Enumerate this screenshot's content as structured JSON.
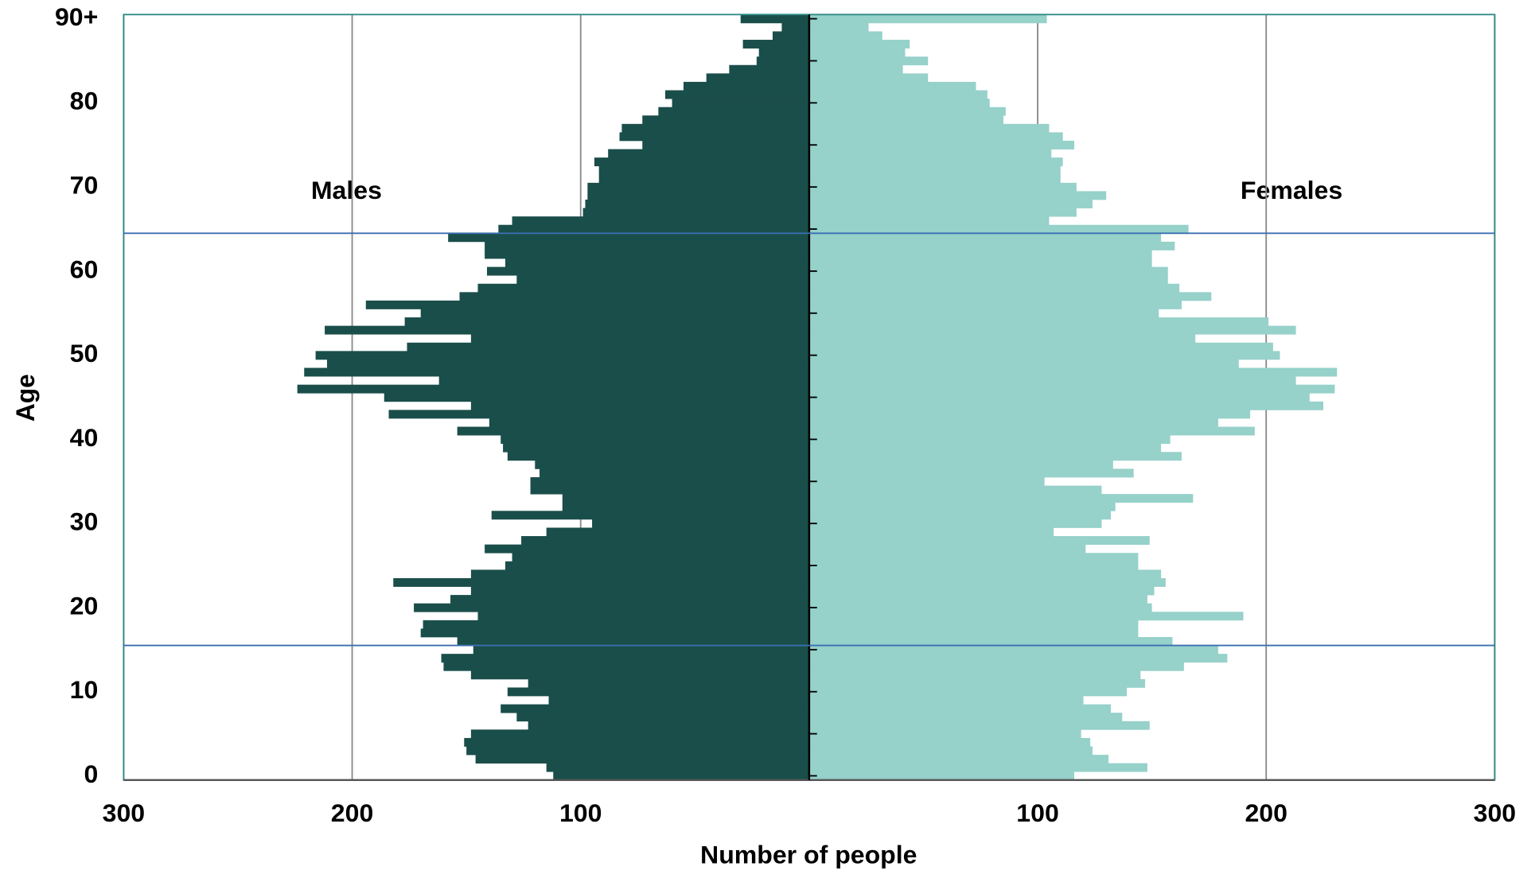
{
  "chart_data": {
    "type": "pyramid",
    "xlabel": "Number of people",
    "ylabel": "Age",
    "categories": [
      "0",
      null,
      null,
      null,
      null,
      null,
      null,
      null,
      null,
      null,
      "10",
      null,
      null,
      null,
      null,
      null,
      null,
      null,
      null,
      null,
      "20",
      null,
      null,
      null,
      null,
      null,
      null,
      null,
      null,
      null,
      "30",
      null,
      null,
      null,
      null,
      null,
      null,
      null,
      null,
      null,
      "40",
      null,
      null,
      null,
      null,
      null,
      null,
      null,
      null,
      null,
      "50",
      null,
      null,
      null,
      null,
      null,
      null,
      null,
      null,
      null,
      "60",
      null,
      null,
      null,
      null,
      null,
      null,
      null,
      null,
      null,
      "70",
      null,
      null,
      null,
      null,
      null,
      null,
      null,
      null,
      null,
      "80",
      null,
      null,
      null,
      null,
      null,
      null,
      null,
      null,
      null,
      "90+"
    ],
    "series": [
      {
        "name": "Males",
        "side": "left",
        "color": "#1a4e4a",
        "values": [
          112,
          115,
          146,
          150,
          151,
          148,
          123,
          128,
          135,
          114,
          132,
          123,
          148,
          160,
          161,
          147,
          154,
          170,
          169,
          145,
          173,
          157,
          148,
          182,
          148,
          133,
          130,
          142,
          126,
          115,
          95,
          139,
          108,
          108,
          122,
          122,
          118,
          120,
          132,
          134,
          135,
          154,
          140,
          184,
          148,
          186,
          224,
          162,
          221,
          211,
          216,
          176,
          148,
          212,
          177,
          170,
          194,
          153,
          145,
          128,
          141,
          133,
          142,
          142,
          158,
          136,
          130,
          99,
          98,
          97,
          97,
          92,
          92,
          94,
          88,
          73,
          83,
          82,
          73,
          66,
          60,
          63,
          55,
          45,
          35,
          23,
          22,
          29,
          16,
          12,
          30
        ]
      },
      {
        "name": "Females",
        "side": "right",
        "color": "#96d1ca",
        "values": [
          116,
          148,
          131,
          124,
          123,
          119,
          149,
          137,
          132,
          120,
          139,
          147,
          145,
          164,
          183,
          179,
          159,
          144,
          144,
          190,
          150,
          148,
          151,
          156,
          154,
          144,
          144,
          121,
          149,
          107,
          128,
          132,
          134,
          168,
          128,
          103,
          142,
          133,
          163,
          154,
          158,
          195,
          179,
          193,
          225,
          219,
          230,
          213,
          231,
          188,
          206,
          203,
          169,
          213,
          201,
          153,
          163,
          176,
          162,
          157,
          157,
          150,
          150,
          160,
          154,
          166,
          105,
          117,
          124,
          130,
          117,
          110,
          110,
          111,
          106,
          116,
          111,
          105,
          85,
          86,
          79,
          78,
          73,
          52,
          41,
          52,
          42,
          44,
          32,
          26,
          104
        ]
      }
    ],
    "xlim": [
      0,
      300
    ],
    "xticks": [
      100,
      200,
      300
    ],
    "grid": true,
    "hlines": [
      15.5,
      64.5
    ],
    "hline_color": "#3a6fb0"
  }
}
